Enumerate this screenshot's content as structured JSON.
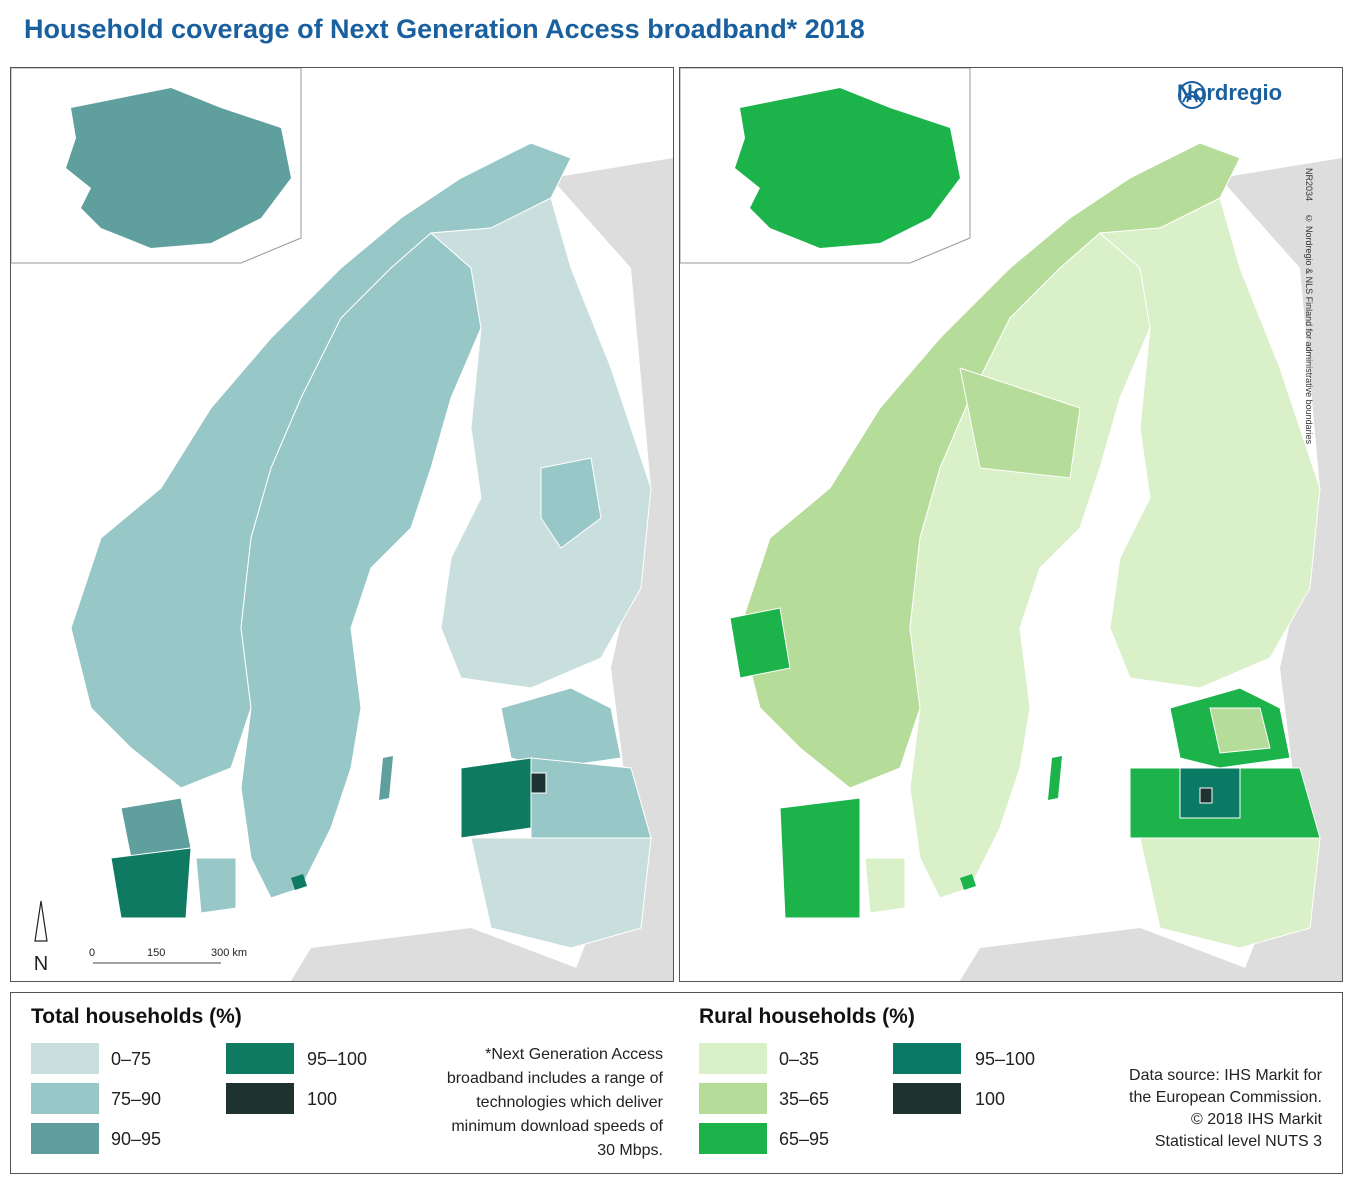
{
  "title": "Household coverage of Next Generation Access broadband* 2018",
  "brand": {
    "name": "Nordregio",
    "logo_icon": "nordregio-logo-icon"
  },
  "map_ids": {
    "code": "NR2034",
    "credit": "© Nordregio & NLS Finland for administrative boundaries"
  },
  "scale": {
    "north": "N",
    "ticks": [
      "0",
      "150",
      "300 km"
    ]
  },
  "legend_total": {
    "title": "Total households (%)",
    "classes": [
      {
        "label": "0–75",
        "color": "#c9dfdd"
      },
      {
        "label": "75–90",
        "color": "#97c7c6"
      },
      {
        "label": "90–95",
        "color": "#5f9f9e"
      },
      {
        "label": "95–100",
        "color": "#0e7a62"
      },
      {
        "label": "100",
        "color": "#1e3230"
      }
    ]
  },
  "legend_rural": {
    "title": "Rural households (%)",
    "classes": [
      {
        "label": "0–35",
        "color": "#d9f0c8"
      },
      {
        "label": "35–65",
        "color": "#b5dc98"
      },
      {
        "label": "65–95",
        "color": "#1cb34b"
      },
      {
        "label": "95–100",
        "color": "#0b7a64"
      },
      {
        "label": "100",
        "color": "#1e3230"
      }
    ]
  },
  "note": "*Next Generation Access broadband includes a range of technologies which deliver minimum download speeds of 30 Mbps.",
  "source": {
    "line1": "Data source: IHS Markit for",
    "line2": "the European Commission.",
    "line3": "© 2018 IHS Markit",
    "line4": "Statistical level NUTS 3"
  },
  "colors": {
    "sea": "#ffffff",
    "other_land": "#dddddd",
    "boundary": "#ffffff",
    "title": "#1a5f9e"
  }
}
